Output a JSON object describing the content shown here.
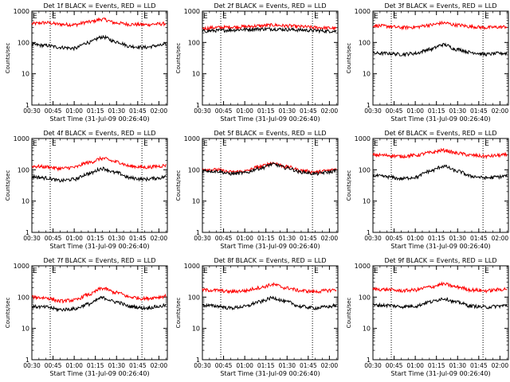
{
  "colors": {
    "events": "#000000",
    "lld": "#ff0000",
    "axis": "#000000",
    "background": "#ffffff"
  },
  "chart_data": [
    {
      "type": "line",
      "title": "Det 1f BLACK = Events, RED = LLD",
      "xlabel": "Start Time (31-Jul-09 00:26:40)",
      "ylabel": "Counts/sec",
      "yscale": "log",
      "ylim": [
        1,
        1000
      ],
      "x_ticks": [
        "00:30",
        "00:45",
        "01:00",
        "01:15",
        "01:30",
        "01:45",
        "02:00"
      ],
      "y_ticks": [
        "1",
        "10",
        "100",
        "1000"
      ],
      "markers": [
        "E",
        "E"
      ],
      "marker_times": [
        "00:43",
        "01:48"
      ],
      "x": [
        "00:30",
        "00:40",
        "00:50",
        "01:00",
        "01:10",
        "01:20",
        "01:30",
        "01:40",
        "01:50",
        "02:00",
        "02:05"
      ],
      "series": [
        {
          "name": "Events",
          "values": [
            85,
            80,
            70,
            65,
            100,
            150,
            105,
            75,
            70,
            80,
            85
          ]
        },
        {
          "name": "LLD",
          "values": [
            400,
            430,
            380,
            370,
            450,
            550,
            420,
            380,
            370,
            390,
            400
          ]
        }
      ]
    },
    {
      "type": "line",
      "title": "Det 2f BLACK = Events, RED = LLD",
      "xlabel": "Start Time (31-Jul-09 00:26:40)",
      "ylabel": "Counts/sec",
      "yscale": "log",
      "ylim": [
        1,
        1000
      ],
      "x_ticks": [
        "00:30",
        "00:45",
        "01:00",
        "01:15",
        "01:30",
        "01:45",
        "02:00"
      ],
      "y_ticks": [
        "1",
        "10",
        "100",
        "1000"
      ],
      "markers": [
        "E",
        "E"
      ],
      "marker_times": [
        "00:43",
        "01:48"
      ],
      "x": [
        "00:30",
        "00:40",
        "00:50",
        "01:00",
        "01:10",
        "01:20",
        "01:30",
        "01:40",
        "01:50",
        "02:00",
        "02:05"
      ],
      "series": [
        {
          "name": "Events",
          "values": [
            230,
            240,
            250,
            260,
            270,
            270,
            260,
            250,
            240,
            230,
            230
          ]
        },
        {
          "name": "LLD",
          "values": [
            280,
            300,
            310,
            320,
            340,
            360,
            340,
            320,
            300,
            290,
            280
          ]
        }
      ]
    },
    {
      "type": "line",
      "title": "Det 3f BLACK = Events, RED = LLD",
      "xlabel": "Start Time (31-Jul-09 00:26:40)",
      "ylabel": "Counts/sec",
      "yscale": "log",
      "ylim": [
        1,
        1000
      ],
      "x_ticks": [
        "00:30",
        "00:45",
        "01:00",
        "01:15",
        "01:30",
        "01:45",
        "02:00"
      ],
      "y_ticks": [
        "1",
        "10",
        "100",
        "1000"
      ],
      "markers": [
        "E",
        "E"
      ],
      "marker_times": [
        "00:43",
        "01:48"
      ],
      "x": [
        "00:30",
        "00:40",
        "00:50",
        "01:00",
        "01:10",
        "01:20",
        "01:30",
        "01:40",
        "01:50",
        "02:00",
        "02:05"
      ],
      "series": [
        {
          "name": "Events",
          "values": [
            45,
            45,
            42,
            45,
            60,
            85,
            60,
            48,
            42,
            45,
            45
          ]
        },
        {
          "name": "LLD",
          "values": [
            350,
            330,
            300,
            310,
            360,
            420,
            360,
            320,
            300,
            310,
            320
          ]
        }
      ]
    },
    {
      "type": "line",
      "title": "Det 4f BLACK = Events, RED = LLD",
      "xlabel": "Start Time (31-Jul-09 00:26:40)",
      "ylabel": "Counts/sec",
      "yscale": "log",
      "ylim": [
        1,
        1000
      ],
      "x_ticks": [
        "00:30",
        "00:45",
        "01:00",
        "01:15",
        "01:30",
        "01:45",
        "02:00"
      ],
      "y_ticks": [
        "1",
        "10",
        "100",
        "1000"
      ],
      "markers": [
        "E",
        "E"
      ],
      "marker_times": [
        "00:43",
        "01:48"
      ],
      "x": [
        "00:30",
        "00:40",
        "00:50",
        "01:00",
        "01:10",
        "01:20",
        "01:30",
        "01:40",
        "01:50",
        "02:00",
        "02:05"
      ],
      "series": [
        {
          "name": "Events",
          "values": [
            60,
            55,
            45,
            50,
            75,
            110,
            80,
            55,
            50,
            55,
            60
          ]
        },
        {
          "name": "LLD",
          "values": [
            130,
            125,
            110,
            120,
            170,
            230,
            180,
            130,
            120,
            130,
            140
          ]
        }
      ]
    },
    {
      "type": "line",
      "title": "Det 5f BLACK = Events, RED = LLD",
      "xlabel": "Start Time (31-Jul-09 00:26:40)",
      "ylabel": "Counts/sec",
      "yscale": "log",
      "ylim": [
        1,
        1000
      ],
      "x_ticks": [
        "00:30",
        "00:45",
        "01:00",
        "01:15",
        "01:30",
        "01:45",
        "02:00"
      ],
      "y_ticks": [
        "1",
        "10",
        "100",
        "1000"
      ],
      "markers": [
        "E",
        "E"
      ],
      "marker_times": [
        "00:43",
        "01:48"
      ],
      "x": [
        "00:30",
        "00:40",
        "00:50",
        "01:00",
        "01:10",
        "01:20",
        "01:30",
        "01:40",
        "01:50",
        "02:00",
        "02:05"
      ],
      "series": [
        {
          "name": "Events",
          "values": [
            95,
            90,
            75,
            80,
            110,
            150,
            115,
            85,
            75,
            85,
            95
          ]
        },
        {
          "name": "LLD",
          "values": [
            105,
            100,
            85,
            90,
            125,
            165,
            125,
            95,
            85,
            95,
            105
          ]
        }
      ]
    },
    {
      "type": "line",
      "title": "Det 6f BLACK = Events, RED = LLD",
      "xlabel": "Start Time (31-Jul-09 00:26:40)",
      "ylabel": "Counts/sec",
      "yscale": "log",
      "ylim": [
        1,
        1000
      ],
      "x_ticks": [
        "00:30",
        "00:45",
        "01:00",
        "01:15",
        "01:30",
        "01:45",
        "02:00"
      ],
      "y_ticks": [
        "1",
        "10",
        "100",
        "1000"
      ],
      "markers": [
        "E",
        "E"
      ],
      "marker_times": [
        "00:43",
        "01:48"
      ],
      "x": [
        "00:30",
        "00:40",
        "00:50",
        "01:00",
        "01:10",
        "01:20",
        "01:30",
        "01:40",
        "01:50",
        "02:00",
        "02:05"
      ],
      "series": [
        {
          "name": "Events",
          "values": [
            65,
            60,
            52,
            58,
            90,
            130,
            90,
            62,
            55,
            60,
            65
          ]
        },
        {
          "name": "LLD",
          "values": [
            300,
            290,
            270,
            290,
            350,
            420,
            340,
            290,
            270,
            290,
            300
          ]
        }
      ]
    },
    {
      "type": "line",
      "title": "Det 7f BLACK = Events, RED = LLD",
      "xlabel": "Start Time (31-Jul-09 00:26:40)",
      "ylabel": "Counts/sec",
      "yscale": "log",
      "ylim": [
        1,
        1000
      ],
      "x_ticks": [
        "00:30",
        "00:45",
        "01:00",
        "01:15",
        "01:30",
        "01:45",
        "02:00"
      ],
      "y_ticks": [
        "1",
        "10",
        "100",
        "1000"
      ],
      "markers": [
        "E",
        "E"
      ],
      "marker_times": [
        "00:43",
        "01:48"
      ],
      "x": [
        "00:30",
        "00:40",
        "00:50",
        "01:00",
        "01:10",
        "01:20",
        "01:30",
        "01:40",
        "01:50",
        "02:00",
        "02:05"
      ],
      "series": [
        {
          "name": "Events",
          "values": [
            50,
            48,
            40,
            42,
            60,
            95,
            70,
            50,
            45,
            50,
            55
          ]
        },
        {
          "name": "LLD",
          "values": [
            100,
            95,
            75,
            80,
            120,
            190,
            140,
            100,
            90,
            100,
            110
          ]
        }
      ]
    },
    {
      "type": "line",
      "title": "Det 8f BLACK = Events, RED = LLD",
      "xlabel": "Start Time (31-Jul-09 00:26:40)",
      "ylabel": "Counts/sec",
      "yscale": "log",
      "ylim": [
        1,
        1000
      ],
      "x_ticks": [
        "00:30",
        "00:45",
        "01:00",
        "01:15",
        "01:30",
        "01:45",
        "02:00"
      ],
      "y_ticks": [
        "1",
        "10",
        "100",
        "1000"
      ],
      "markers": [
        "E",
        "E"
      ],
      "marker_times": [
        "00:43",
        "01:48"
      ],
      "x": [
        "00:30",
        "00:40",
        "00:50",
        "01:00",
        "01:10",
        "01:20",
        "01:30",
        "01:40",
        "01:50",
        "02:00",
        "02:05"
      ],
      "series": [
        {
          "name": "Events",
          "values": [
            55,
            52,
            45,
            50,
            70,
            95,
            70,
            50,
            45,
            50,
            55
          ]
        },
        {
          "name": "LLD",
          "values": [
            170,
            165,
            150,
            160,
            200,
            250,
            195,
            160,
            150,
            165,
            175
          ]
        }
      ]
    },
    {
      "type": "line",
      "title": "Det 9f BLACK = Events, RED = LLD",
      "xlabel": "Start Time (31-Jul-09 00:26:40)",
      "ylabel": "Counts/sec",
      "yscale": "log",
      "ylim": [
        1,
        1000
      ],
      "x_ticks": [
        "00:30",
        "00:45",
        "01:00",
        "01:15",
        "01:30",
        "01:45",
        "02:00"
      ],
      "y_ticks": [
        "1",
        "10",
        "100",
        "1000"
      ],
      "markers": [
        "E",
        "E"
      ],
      "marker_times": [
        "00:43",
        "01:48"
      ],
      "x": [
        "00:30",
        "00:40",
        "00:50",
        "01:00",
        "01:10",
        "01:20",
        "01:30",
        "01:40",
        "01:50",
        "02:00",
        "02:05"
      ],
      "series": [
        {
          "name": "Events",
          "values": [
            55,
            55,
            50,
            52,
            70,
            90,
            68,
            52,
            48,
            52,
            55
          ]
        },
        {
          "name": "LLD",
          "values": [
            180,
            175,
            160,
            170,
            210,
            260,
            210,
            170,
            160,
            175,
            185
          ]
        }
      ]
    }
  ]
}
